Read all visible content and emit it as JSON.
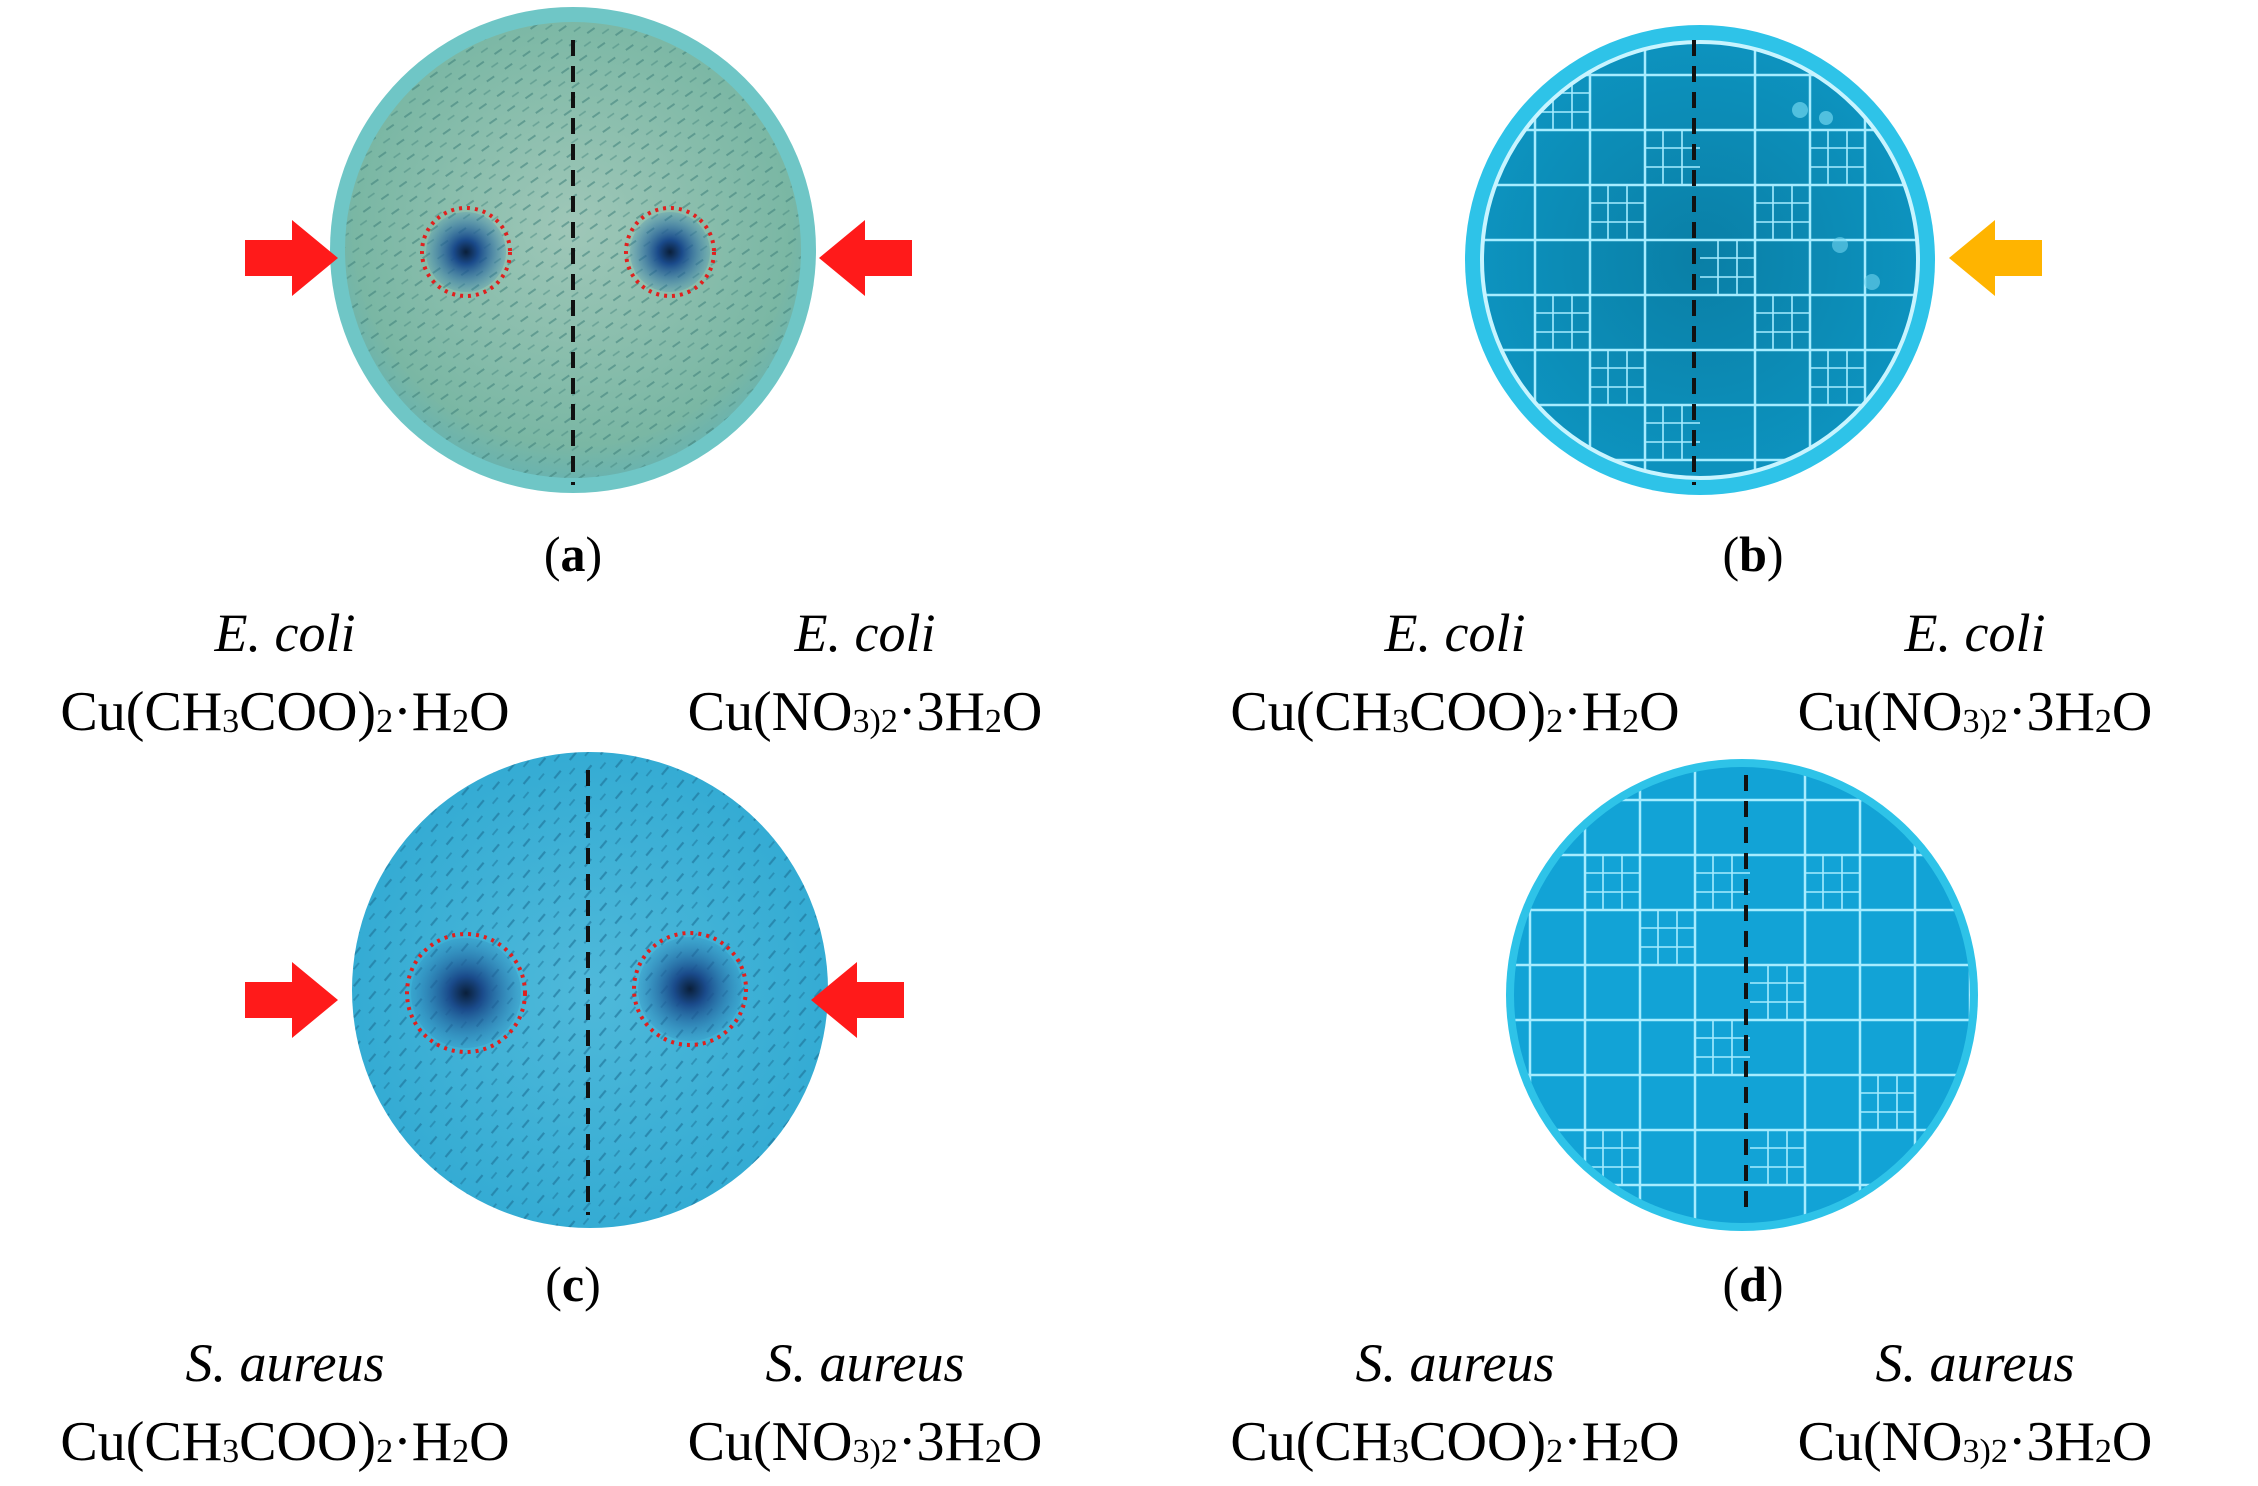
{
  "panels": {
    "a": {
      "label": "a",
      "left": {
        "species": "E. coli",
        "compound": {
          "p1": "Cu(CH",
          "s1": "3",
          "p2": "COO)",
          "s2": "2",
          "p3": "·H",
          "s3": "2",
          "p4": "O"
        }
      },
      "right": {
        "species": "E. coli",
        "compound": {
          "p1": "Cu(NO",
          "s1": "3)",
          "p2": "",
          "s2": "2",
          "p3": "·3H",
          "s3": "2",
          "p4": "O"
        }
      }
    },
    "b": {
      "label": "b",
      "left": {
        "species": "E. coli",
        "compound": {
          "p1": "Cu(CH",
          "s1": "3",
          "p2": "COO)",
          "s2": "2",
          "p3": "·H",
          "s3": "2",
          "p4": "O"
        }
      },
      "right": {
        "species": "E. coli",
        "compound": {
          "p1": "Cu(NO",
          "s1": "3)",
          "p2": "",
          "s2": "2",
          "p3": "·3H",
          "s3": "2",
          "p4": "O"
        }
      }
    },
    "c": {
      "label": "c",
      "left": {
        "species": "S. aureus",
        "compound": {
          "p1": "Cu(CH",
          "s1": "3",
          "p2": "COO)",
          "s2": "2",
          "p3": "·H",
          "s3": "2",
          "p4": "O"
        }
      },
      "right": {
        "species": "S. aureus",
        "compound": {
          "p1": "Cu(NO",
          "s1": "3)",
          "p2": "",
          "s2": "2",
          "p3": "·3H",
          "s3": "2",
          "p4": "O"
        }
      }
    },
    "d": {
      "label": "d",
      "left": {
        "species": "S. aureus",
        "compound": {
          "p1": "Cu(CH",
          "s1": "3",
          "p2": "COO)",
          "s2": "2",
          "p3": "·H",
          "s3": "2",
          "p4": "O"
        }
      },
      "right": {
        "species": "S. aureus",
        "compound": {
          "p1": "Cu(NO",
          "s1": "3)",
          "p2": "",
          "s2": "2",
          "p3": "·3H",
          "s3": "2",
          "p4": "O"
        }
      }
    }
  },
  "colors": {
    "arrow_red": "#ff1a1a",
    "arrow_yellow": "#ffb400",
    "dish_a": "#7fbfae",
    "dish_c": "#3fb3d6",
    "dish_bd": "#11a9d8",
    "grid": "#a6ecff",
    "inhibition_ring": "#e0201e"
  }
}
